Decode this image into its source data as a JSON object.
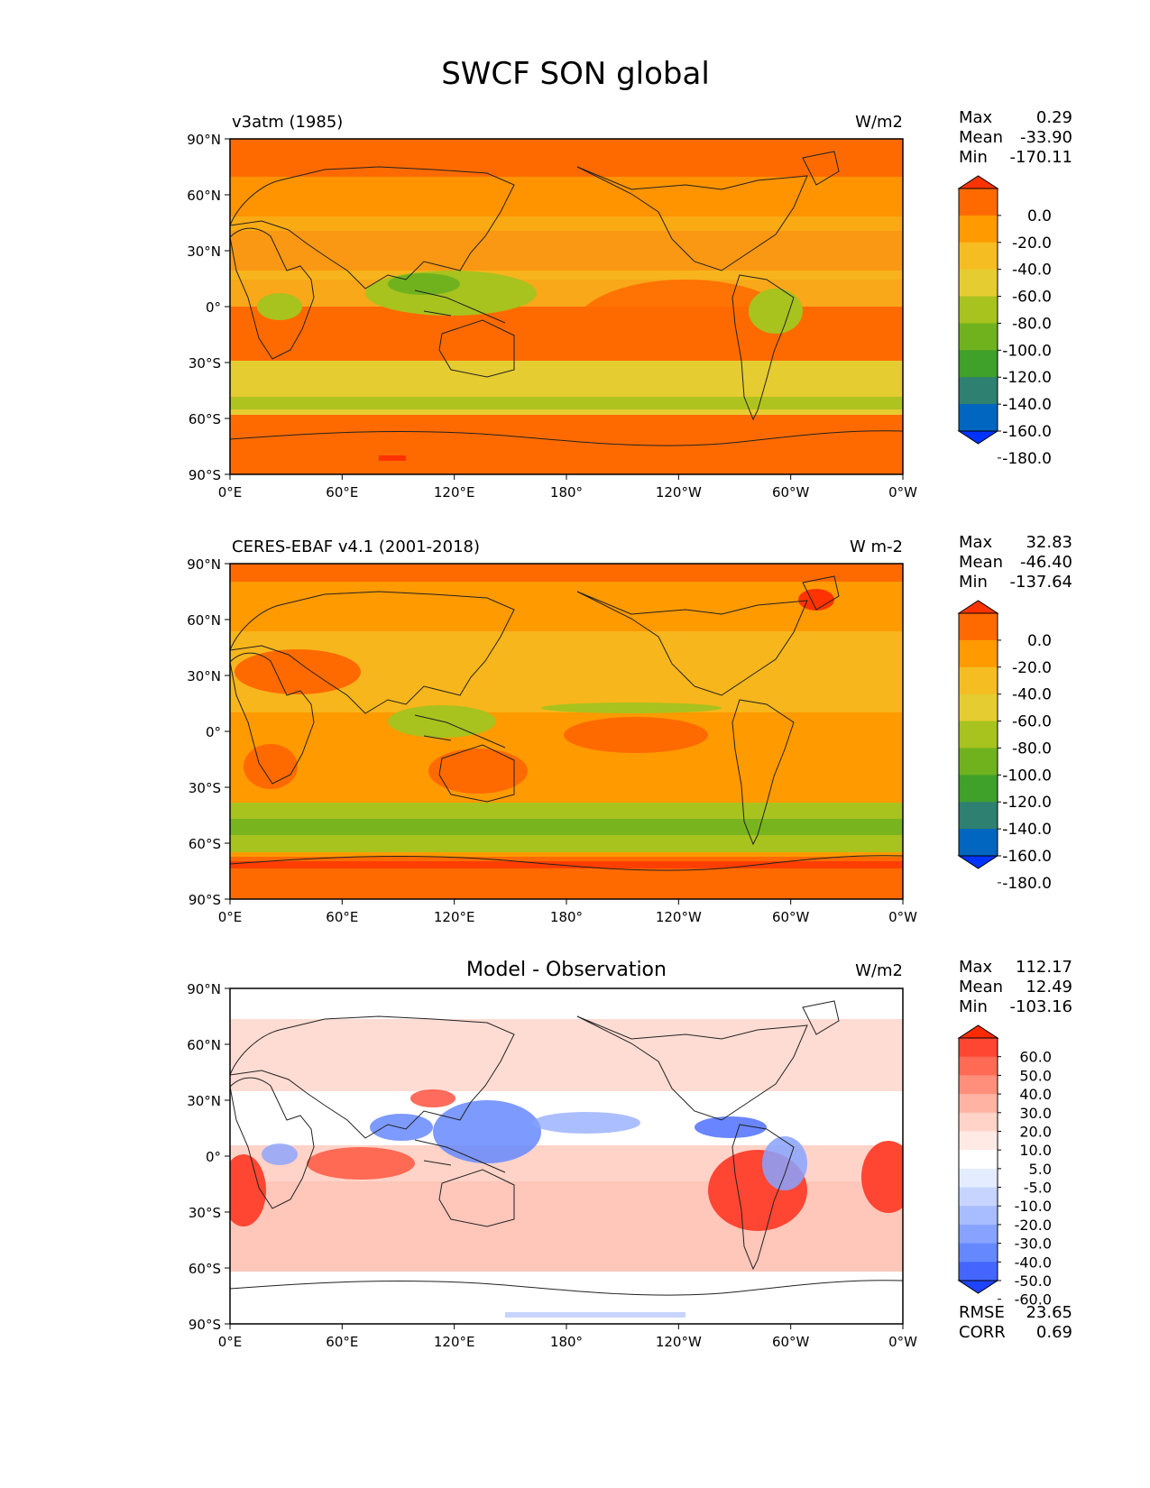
{
  "figure": {
    "title": "SWCF SON global"
  },
  "axes": {
    "lat_labels": [
      "90°N",
      "60°N",
      "30°N",
      "0°",
      "30°S",
      "60°S",
      "90°S"
    ],
    "lon_labels": [
      "0°E",
      "60°E",
      "120°E",
      "180°",
      "120°W",
      "60°W",
      "0°W"
    ]
  },
  "panels": [
    {
      "id": "model",
      "left_title": "v3atm (1985)",
      "center_title": "",
      "units": "W/m2",
      "stats": [
        {
          "label": "Max",
          "value": "0.29"
        },
        {
          "label": "Mean",
          "value": "-33.90"
        },
        {
          "label": "Min",
          "value": "-170.11"
        }
      ],
      "colorbar": {
        "ticks": [
          "0.0",
          "-20.0",
          "-40.0",
          "-60.0",
          "-80.0",
          "-100.0",
          "-120.0",
          "-140.0",
          "-160.0",
          "-180.0"
        ],
        "colors": [
          "#ff3300",
          "#ff6a00",
          "#ff9a00",
          "#f5bd22",
          "#e5cc30",
          "#a8c21e",
          "#70b21e",
          "#3fa02a",
          "#2e8070",
          "#0066bf",
          "#0033ff"
        ]
      }
    },
    {
      "id": "obs",
      "left_title": "CERES-EBAF v4.1 (2001-2018)",
      "center_title": "",
      "units": "W m-2",
      "stats": [
        {
          "label": "Max",
          "value": "32.83"
        },
        {
          "label": "Mean",
          "value": "-46.40"
        },
        {
          "label": "Min",
          "value": "-137.64"
        }
      ],
      "colorbar": {
        "ticks": [
          "0.0",
          "-20.0",
          "-40.0",
          "-60.0",
          "-80.0",
          "-100.0",
          "-120.0",
          "-140.0",
          "-160.0",
          "-180.0"
        ],
        "colors": [
          "#ff3300",
          "#ff6a00",
          "#ff9a00",
          "#f5bd22",
          "#e5cc30",
          "#a8c21e",
          "#70b21e",
          "#3fa02a",
          "#2e8070",
          "#0066bf",
          "#0033ff"
        ]
      }
    },
    {
      "id": "diff",
      "left_title": "",
      "center_title": "Model - Observation",
      "units": "W/m2",
      "stats": [
        {
          "label": "Max",
          "value": "112.17"
        },
        {
          "label": "Mean",
          "value": "12.49"
        },
        {
          "label": "Min",
          "value": "-103.16"
        }
      ],
      "colorbar": {
        "ticks": [
          "60.0",
          "50.0",
          "40.0",
          "30.0",
          "20.0",
          "10.0",
          "5.0",
          "-5.0",
          "-10.0",
          "-20.0",
          "-30.0",
          "-40.0",
          "-50.0",
          "-60.0"
        ],
        "colors": [
          "#ff2a00",
          "#ff4633",
          "#ff6a55",
          "#ff8f7a",
          "#ffb3a3",
          "#ffd3c8",
          "#ffeae5",
          "#ffffff",
          "#e4ecff",
          "#c6d4ff",
          "#a8bdff",
          "#88a3ff",
          "#6688ff",
          "#4466ff",
          "#1f44ff"
        ]
      },
      "extra_stats": [
        {
          "label": "RMSE",
          "value": "23.65"
        },
        {
          "label": "CORR",
          "value": "0.69"
        }
      ]
    }
  ],
  "map_colors": {
    "abs_ocean": "#ff6a00",
    "abs_midlat": "#ff9a00",
    "abs_subtrop": "#f5bd22",
    "abs_storm": "#e5cc30",
    "abs_green": "#a8c21e",
    "abs_dark_green": "#70b21e",
    "abs_polar": "#ff3300",
    "diff_pos": "#ff4633",
    "diff_pos_light": "#ffb3a3",
    "diff_neg": "#6688ff",
    "diff_neg_light": "#c6d4ff"
  }
}
